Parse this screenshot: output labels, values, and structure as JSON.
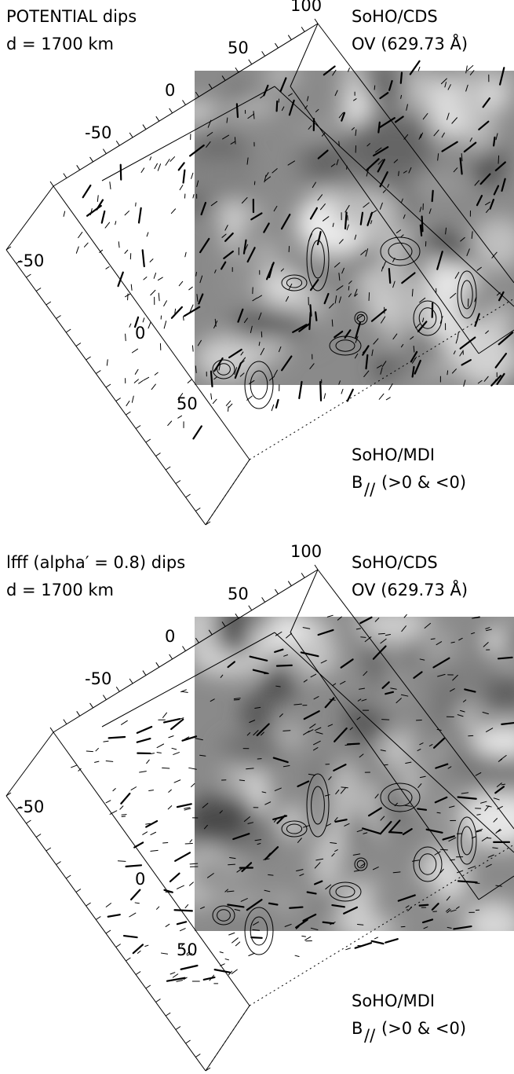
{
  "panels": [
    {
      "title": [
        "POTENTIAL dips",
        "d = 1700 km"
      ],
      "top_instrument": [
        "SoHO/CDS",
        "OV (629.73 Å)"
      ],
      "bottom_instrument": {
        "line1": "SoHO/MDI",
        "symbol": "B",
        "subscript": "//",
        "rest": "(>0 & <0)"
      },
      "top_axis_labels": [
        "100",
        "50",
        "0",
        "-50"
      ],
      "left_axis_labels": [
        "-50",
        "0",
        "50"
      ]
    },
    {
      "title": [
        "lfff (alpha′ = 0.8) dips",
        "d = 1700 km"
      ],
      "top_instrument": [
        "SoHO/CDS",
        "OV (629.73 Å)"
      ],
      "bottom_instrument": {
        "line1": "SoHO/MDI",
        "symbol": "B",
        "subscript": "//",
        "rest": "(>0 & <0)"
      },
      "top_axis_labels": [
        "100",
        "50",
        "0",
        "-50"
      ],
      "left_axis_labels": [
        "-50",
        "0",
        "50"
      ]
    }
  ]
}
